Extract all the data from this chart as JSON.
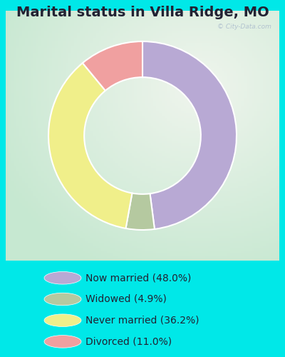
{
  "title": "Marital status in Villa Ridge, MO",
  "slices": [
    48.0,
    4.9,
    36.2,
    11.0
  ],
  "labels": [
    "Now married (48.0%)",
    "Widowed (4.9%)",
    "Never married (36.2%)",
    "Divorced (11.0%)"
  ],
  "colors": [
    "#b8a9d4",
    "#b5c9a0",
    "#f0ef8a",
    "#f0a0a0"
  ],
  "bg_cyan": "#00e8e8",
  "bg_chart_color1": "#c8e8d0",
  "bg_chart_color2": "#e8f5ee",
  "title_fontsize": 14,
  "watermark": "City-Data.com",
  "donut_width": 0.38,
  "start_angle": 90,
  "legend_fontsize": 10
}
